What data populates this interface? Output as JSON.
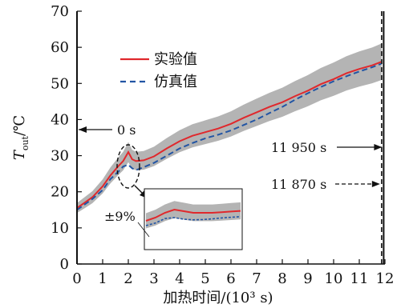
{
  "chart_data": {
    "type": "line",
    "xlabel": "加热时间/(10³ s)",
    "ylabel_main": "T",
    "ylabel_sub": "out",
    "ylabel_unit": "/℃",
    "xlim": [
      0,
      12
    ],
    "ylim": [
      0,
      70
    ],
    "xticks": [
      "0",
      "1",
      "2",
      "3",
      "4",
      "5",
      "6",
      "7",
      "8",
      "9",
      "10",
      "11",
      "12"
    ],
    "yticks": [
      "0",
      "10",
      "20",
      "30",
      "40",
      "50",
      "60",
      "70"
    ],
    "grid": false,
    "legend_position": "top-left",
    "colors": {
      "experiment": "#e0282c",
      "simulation": "#2255a4",
      "band": "#b4b4b4"
    },
    "series": [
      {
        "name": "实验值",
        "style": "solid",
        "x": [
          0,
          0.3,
          0.6,
          1.0,
          1.3,
          1.6,
          1.8,
          2.0,
          2.15,
          2.3,
          2.6,
          3.0,
          3.5,
          4.0,
          4.5,
          5.0,
          5.5,
          6.0,
          6.5,
          7.0,
          7.5,
          8.0,
          8.5,
          9.0,
          9.5,
          10.0,
          10.5,
          11.0,
          11.5,
          11.87
        ],
        "values": [
          15.5,
          17.0,
          18.5,
          21.5,
          24.5,
          27.0,
          28.5,
          31.0,
          29.0,
          28.5,
          28.7,
          29.8,
          32.0,
          34.0,
          35.5,
          36.5,
          37.5,
          38.8,
          40.5,
          42.0,
          43.5,
          44.8,
          46.5,
          48.0,
          49.8,
          51.2,
          52.8,
          54.0,
          55.0,
          56.0
        ]
      },
      {
        "name": "仿真值",
        "style": "dashed",
        "x": [
          0,
          0.3,
          0.6,
          1.0,
          1.3,
          1.6,
          1.8,
          2.0,
          2.15,
          2.3,
          2.6,
          3.0,
          3.5,
          4.0,
          4.5,
          5.0,
          5.5,
          6.0,
          6.5,
          7.0,
          7.5,
          8.0,
          8.5,
          9.0,
          9.5,
          10.0,
          10.5,
          11.0,
          11.5,
          11.87
        ],
        "values": [
          15.0,
          16.5,
          18.0,
          20.5,
          23.5,
          25.5,
          27.0,
          27.5,
          26.5,
          26.0,
          26.8,
          28.0,
          30.0,
          32.0,
          33.5,
          34.8,
          35.8,
          37.0,
          38.5,
          40.0,
          41.8,
          43.5,
          45.5,
          47.3,
          49.0,
          50.6,
          52.0,
          53.3,
          54.5,
          55.5
        ]
      }
    ],
    "band_label": "±9%",
    "vlines": [
      {
        "x": 0,
        "label": "0 s",
        "style": "solid"
      },
      {
        "x": 11.95,
        "label": "11 950 s",
        "style": "solid"
      },
      {
        "x": 11.87,
        "label": "11 870 s",
        "style": "dashed"
      }
    ],
    "inset": {
      "x_range": [
        1.8,
        2.6
      ],
      "exp": [
        26.5,
        27.5,
        29.0,
        30.0,
        29.5,
        29.0,
        29.0,
        29.0,
        29.2,
        29.4,
        29.6
      ],
      "sim": [
        25.0,
        25.8,
        27.2,
        27.5,
        27.0,
        26.8,
        26.9,
        27.1,
        27.4,
        27.6,
        27.8
      ]
    }
  }
}
